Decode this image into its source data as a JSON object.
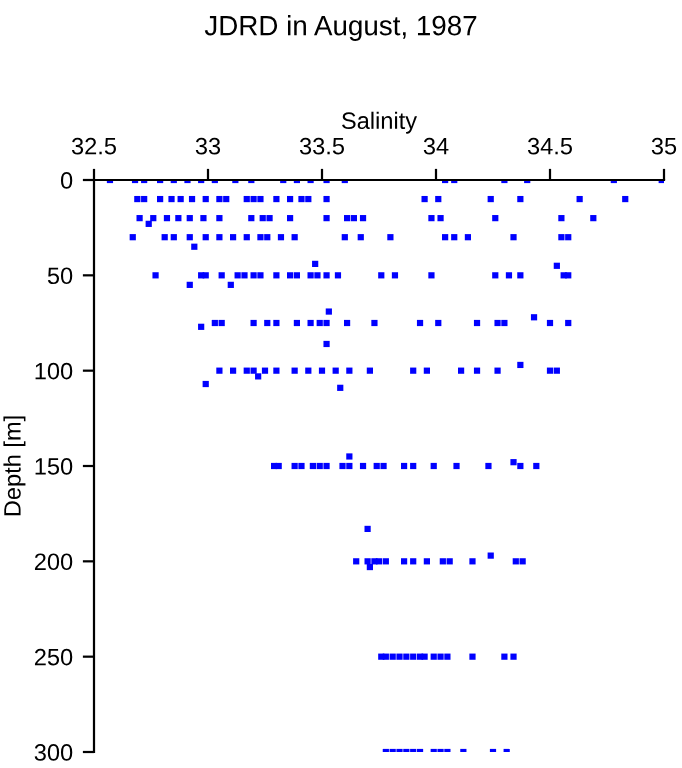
{
  "chart_data": {
    "type": "scatter",
    "title": "JDRD in August, 1987",
    "xlabel": "Salinity",
    "ylabel": "Depth [m]",
    "xlim": [
      32.5,
      35
    ],
    "xticks": [
      32.5,
      33,
      33.5,
      34,
      34.5,
      35
    ],
    "ylim": [
      300,
      0
    ],
    "yticks": [
      0,
      50,
      100,
      150,
      200,
      250,
      300
    ],
    "marker": "square",
    "grid": false,
    "legend": false,
    "series": [
      {
        "color": "#0000ff",
        "x": [
          32.57,
          32.68,
          32.72,
          32.79,
          32.85,
          32.91,
          32.97,
          33.03,
          33.12,
          33.19,
          33.33,
          33.39,
          33.45,
          33.52,
          33.6,
          34.04,
          34.08,
          34.3,
          34.4,
          34.78,
          34.99
        ],
        "values": [
          0,
          0,
          0,
          0,
          0,
          0,
          0,
          0,
          0,
          0,
          0,
          0,
          0,
          0,
          0,
          0,
          0,
          0,
          0,
          0,
          0
        ]
      },
      {
        "color": "#0000ff",
        "x": [
          32.69,
          32.72,
          32.79,
          32.84,
          32.88,
          32.93,
          32.99,
          33.05,
          33.08,
          33.17,
          33.2,
          33.23,
          33.3,
          33.36,
          33.41,
          33.44,
          33.52,
          33.95,
          34.01,
          34.24,
          34.37,
          34.63,
          34.83
        ],
        "values": [
          10,
          10,
          10,
          10,
          10,
          10,
          10,
          10,
          10,
          10,
          10,
          10,
          10,
          10,
          10,
          10,
          10,
          10,
          10,
          10,
          10,
          10,
          10
        ]
      },
      {
        "color": "#0000ff",
        "x": [
          32.7,
          32.76,
          32.82,
          32.87,
          32.92,
          32.98,
          33.05,
          33.19,
          33.24,
          33.27,
          33.36,
          33.52,
          33.61,
          33.64,
          33.68,
          33.98,
          34.02,
          34.26,
          34.55,
          34.69,
          32.74
        ],
        "values": [
          20,
          20,
          20,
          20,
          20,
          20,
          20,
          20,
          20,
          20,
          20,
          20,
          20,
          20,
          20,
          20,
          20,
          20,
          20,
          20,
          23
        ]
      },
      {
        "color": "#0000ff",
        "x": [
          32.67,
          32.81,
          32.85,
          32.92,
          32.99,
          33.05,
          33.11,
          33.17,
          33.23,
          33.26,
          33.32,
          33.38,
          33.6,
          33.67,
          33.8,
          34.04,
          34.08,
          34.14,
          34.34,
          34.55,
          34.58,
          32.94
        ],
        "values": [
          30,
          30,
          30,
          30,
          30,
          30,
          30,
          30,
          30,
          30,
          30,
          30,
          30,
          30,
          30,
          30,
          30,
          30,
          30,
          30,
          30,
          35
        ]
      },
      {
        "color": "#0000ff",
        "x": [
          32.77,
          32.97,
          32.99,
          33.06,
          33.13,
          33.16,
          33.2,
          33.23,
          33.3,
          33.36,
          33.39,
          33.45,
          33.48,
          33.52,
          33.57,
          33.76,
          33.82,
          33.98,
          34.26,
          34.32,
          34.37,
          34.56,
          34.58,
          32.92,
          33.1,
          34.53,
          33.47
        ],
        "values": [
          50,
          50,
          50,
          50,
          50,
          50,
          50,
          50,
          50,
          50,
          50,
          50,
          50,
          50,
          50,
          50,
          50,
          50,
          50,
          50,
          50,
          50,
          50,
          55,
          55,
          45,
          44
        ]
      },
      {
        "color": "#0000ff",
        "x": [
          33.03,
          33.06,
          33.2,
          33.26,
          33.3,
          33.39,
          33.45,
          33.49,
          33.52,
          33.61,
          33.73,
          33.93,
          34.01,
          34.18,
          34.27,
          34.3,
          34.5,
          34.58,
          32.97,
          34.43,
          33.53,
          33.52
        ],
        "values": [
          75,
          75,
          75,
          75,
          75,
          75,
          75,
          75,
          75,
          75,
          75,
          75,
          75,
          75,
          75,
          75,
          75,
          75,
          77,
          72,
          69,
          86
        ]
      },
      {
        "color": "#0000ff",
        "x": [
          33.05,
          33.11,
          33.17,
          33.2,
          33.25,
          33.3,
          33.38,
          33.44,
          33.5,
          33.56,
          33.62,
          33.71,
          33.9,
          33.96,
          34.11,
          34.18,
          34.27,
          34.5,
          34.53,
          32.99,
          33.22,
          34.37,
          33.58
        ],
        "values": [
          100,
          100,
          100,
          100,
          100,
          100,
          100,
          100,
          100,
          100,
          100,
          100,
          100,
          100,
          100,
          100,
          100,
          100,
          100,
          107,
          103,
          97,
          109
        ]
      },
      {
        "color": "#0000ff",
        "x": [
          33.29,
          33.31,
          33.38,
          33.41,
          33.46,
          33.49,
          33.52,
          33.59,
          33.62,
          33.68,
          33.74,
          33.77,
          33.86,
          33.9,
          33.99,
          34.09,
          34.23,
          34.37,
          34.44,
          34.34,
          33.62
        ],
        "values": [
          150,
          150,
          150,
          150,
          150,
          150,
          150,
          150,
          150,
          150,
          150,
          150,
          150,
          150,
          150,
          150,
          150,
          150,
          150,
          148,
          145
        ]
      },
      {
        "color": "#0000ff",
        "x": [
          33.65,
          33.7,
          33.73,
          33.75,
          33.78,
          33.86,
          33.9,
          33.96,
          34.03,
          34.06,
          34.16,
          34.35,
          34.38,
          34.24,
          33.7,
          33.71
        ],
        "values": [
          200,
          200,
          200,
          200,
          200,
          200,
          200,
          200,
          200,
          200,
          200,
          200,
          200,
          197,
          183,
          203
        ]
      },
      {
        "color": "#0000ff",
        "x": [
          33.76,
          33.78,
          33.81,
          33.84,
          33.87,
          33.9,
          33.93,
          33.95,
          33.99,
          34.02,
          34.05,
          34.16,
          34.3,
          34.34
        ],
        "values": [
          250,
          250,
          250,
          250,
          250,
          250,
          250,
          250,
          250,
          250,
          250,
          250,
          250,
          250
        ]
      },
      {
        "color": "#0000ff",
        "x": [
          33.78,
          33.81,
          33.84,
          33.87,
          33.9,
          33.93,
          33.99,
          34.02,
          34.05,
          34.12,
          34.25,
          34.31
        ],
        "values": [
          300,
          300,
          300,
          300,
          300,
          300,
          300,
          300,
          300,
          300,
          300,
          300
        ]
      }
    ]
  }
}
